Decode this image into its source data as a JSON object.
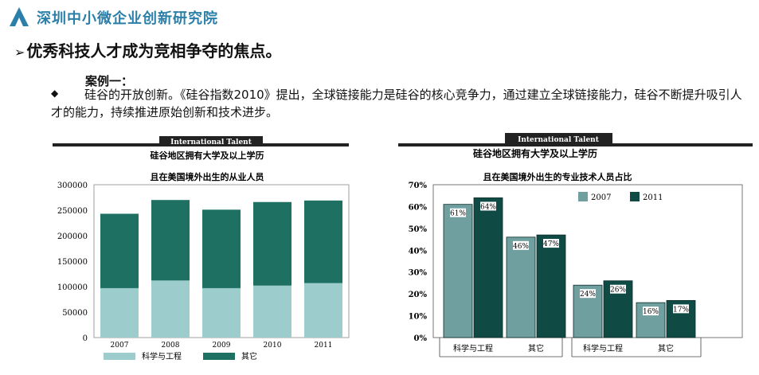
{
  "header": {
    "org_name": "深圳中小微企业创新研究院",
    "logo_icon": "triangle-logo-icon",
    "brand_color": "#2b7fa8"
  },
  "page": {
    "title": "优秀科技人才成为竞相争夺的焦点。",
    "title_marker": "➢",
    "case_title": "案例一：",
    "bullet": "◆",
    "paragraph": "硅谷的开放创新。《硅谷指数2010》提出，全球链接能力是硅谷的核心竞争力，通过建立全球链接能力，硅谷不断提升吸引人才的能力，持续推进原始创新和技术进步。"
  },
  "chart_data": [
    {
      "type": "bar",
      "stacked": true,
      "banner": "International Talent",
      "title": "硅谷地区拥有大学及以上学历",
      "subtitle": "且在美国境外出生的从业人员",
      "categories": [
        "2007",
        "2008",
        "2009",
        "2010",
        "2011"
      ],
      "series": [
        {
          "name": "科学与工程",
          "values": [
            97000,
            112000,
            97000,
            102000,
            107000
          ],
          "color": "#9ccccb"
        },
        {
          "name": "其它",
          "values": [
            146000,
            158000,
            154000,
            164000,
            162000
          ],
          "color": "#1e7063"
        }
      ],
      "yticks": [
        "300000",
        "250000",
        "200000",
        "150000",
        "100000",
        "50000",
        "0"
      ],
      "ylim": [
        0,
        300000
      ],
      "legend_position": "bottom"
    },
    {
      "type": "bar",
      "banner": "International Talent",
      "title": "硅谷地区拥有大学及以上学历",
      "subtitle": "且在美国境外出生的专业技术人员占比",
      "groups": [
        {
          "region_label": "",
          "categories": [
            "科学与工程",
            "其它"
          ]
        },
        {
          "region_label": "",
          "categories": [
            "科学与工程",
            "其它"
          ]
        }
      ],
      "category_labels": [
        "科学与工程",
        "其它",
        "科学与工程",
        "其它"
      ],
      "series": [
        {
          "name": "2007",
          "values": [
            61,
            46,
            24,
            16
          ],
          "labels": [
            "61%",
            "46%",
            "24%",
            "16%"
          ],
          "color": "#6f9f9f"
        },
        {
          "name": "2011",
          "values": [
            64,
            47,
            26,
            17
          ],
          "labels": [
            "64%",
            "47%",
            "26%",
            "17%"
          ],
          "color": "#0f4a45"
        }
      ],
      "yticks": [
        "70%",
        "60%",
        "50%",
        "40%",
        "30%",
        "20%",
        "10%",
        "0%"
      ],
      "ylim": [
        0,
        70
      ],
      "legend_position": "top-right"
    }
  ]
}
